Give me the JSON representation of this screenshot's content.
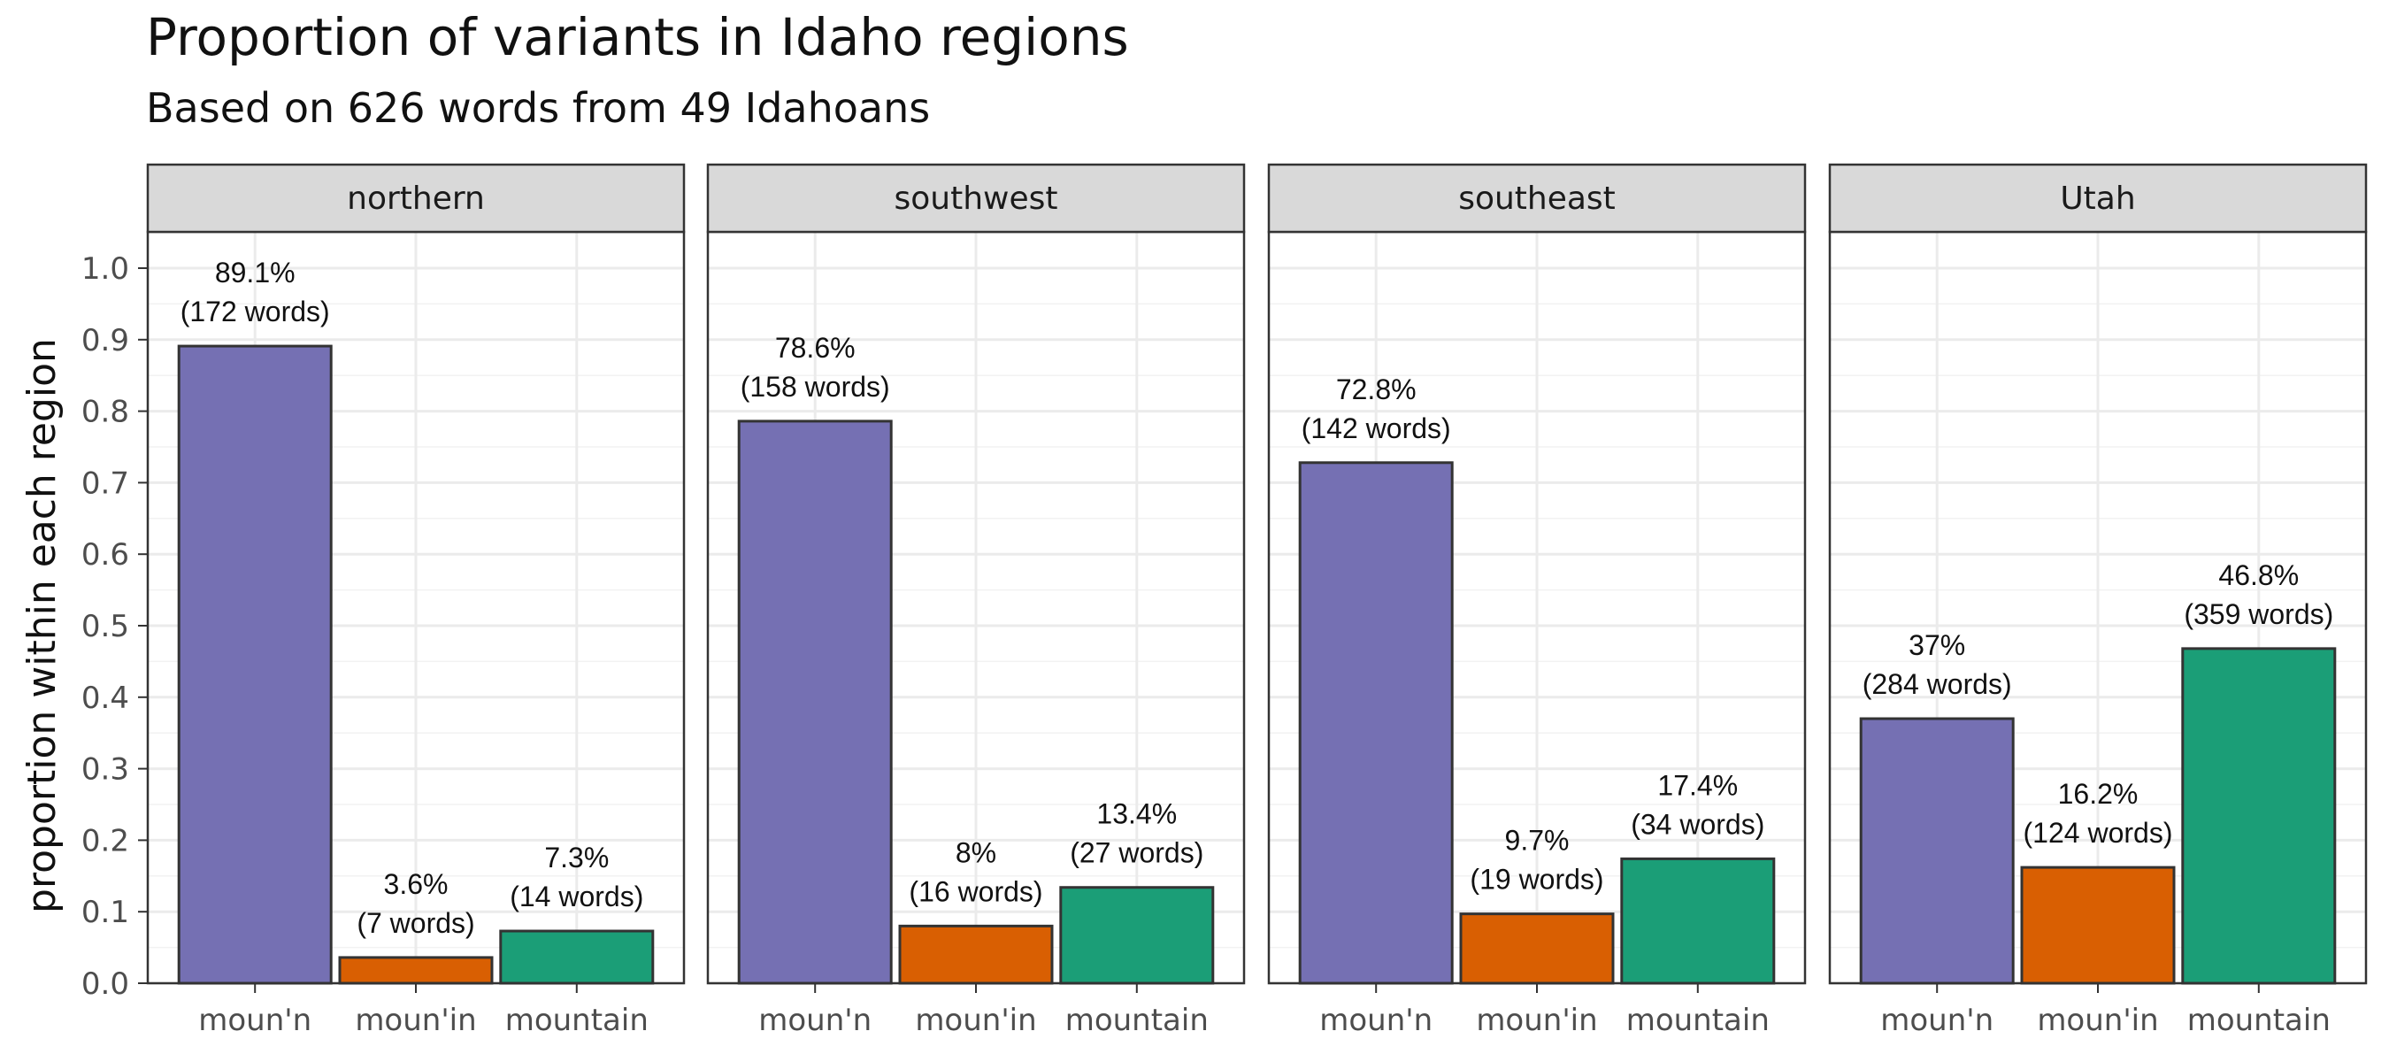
{
  "chart_data": {
    "type": "bar",
    "title": "Proportion of variants in Idaho regions",
    "subtitle": "Based on 626 words from 49 Idahoans",
    "xlabel": "",
    "ylabel": "proportion within each region",
    "ylim": [
      0,
      1.0
    ],
    "yticks": [
      "0.0",
      "0.1",
      "0.2",
      "0.3",
      "0.4",
      "0.5",
      "0.6",
      "0.7",
      "0.8",
      "0.9",
      "1.0"
    ],
    "grid": true,
    "categories": [
      "moun'n",
      "moun'in",
      "mountain"
    ],
    "colors": {
      "moun'n": "#7570b3",
      "moun'in": "#d95f02",
      "mountain": "#1b9e77"
    },
    "facets": [
      {
        "name": "northern",
        "values": [
          0.891,
          0.036,
          0.073
        ],
        "labels": [
          [
            "89.1%",
            "(172 words)"
          ],
          [
            "3.6%",
            "(7 words)"
          ],
          [
            "7.3%",
            "(14 words)"
          ]
        ]
      },
      {
        "name": "southwest",
        "values": [
          0.786,
          0.08,
          0.134
        ],
        "labels": [
          [
            "78.6%",
            "(158 words)"
          ],
          [
            "8%",
            "(16 words)"
          ],
          [
            "13.4%",
            "(27 words)"
          ]
        ]
      },
      {
        "name": "southeast",
        "values": [
          0.728,
          0.097,
          0.174
        ],
        "labels": [
          [
            "72.8%",
            "(142 words)"
          ],
          [
            "9.7%",
            "(19 words)"
          ],
          [
            "17.4%",
            "(34 words)"
          ]
        ]
      },
      {
        "name": "Utah",
        "values": [
          0.37,
          0.162,
          0.468
        ],
        "labels": [
          [
            "37%",
            "(284 words)"
          ],
          [
            "16.2%",
            "(124 words)"
          ],
          [
            "46.8%",
            "(359 words)"
          ]
        ]
      }
    ]
  }
}
